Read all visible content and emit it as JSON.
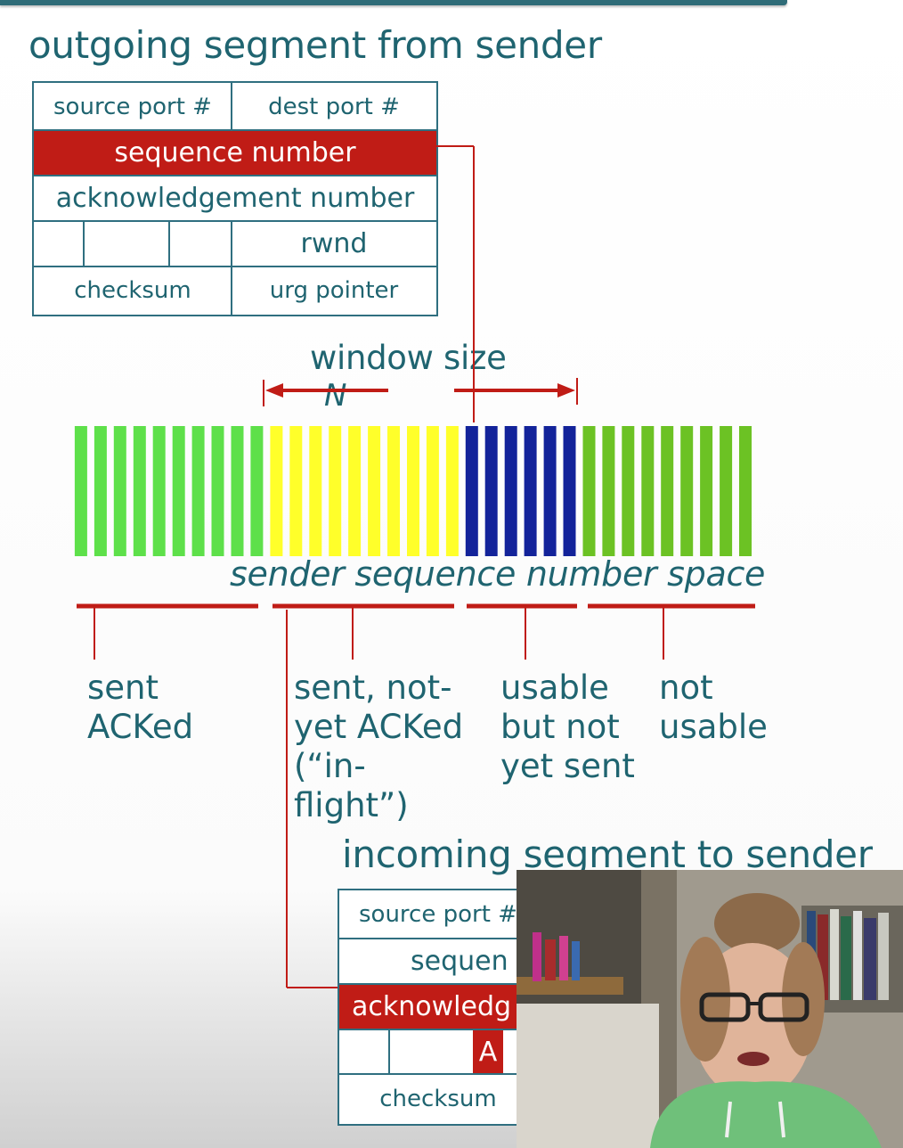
{
  "titles": {
    "outgoing": "outgoing segment from sender",
    "incoming": "incoming segment to sender"
  },
  "outgoing_segment": {
    "source_port": "source port #",
    "dest_port": "dest port #",
    "sequence_number": "sequence number",
    "ack_number": "acknowledgement number",
    "rwnd": "rwnd",
    "checksum": "checksum",
    "urg_pointer": "urg pointer"
  },
  "incoming_segment": {
    "source_port": "source port #",
    "sequence_number": "sequen",
    "ack_number": "acknowledg",
    "ack_flag": "A",
    "checksum": "checksum"
  },
  "window": {
    "label": "window size",
    "n_label": "N"
  },
  "space_label": "sender sequence number space",
  "bar_groups": [
    {
      "name": "sent-acked",
      "count": 10,
      "color": "#5ee04a"
    },
    {
      "name": "sent-not-acked",
      "count": 10,
      "color": "#ffff2a"
    },
    {
      "name": "usable-not-sent",
      "count": 6,
      "color": "#13239a"
    },
    {
      "name": "not-usable",
      "count": 9,
      "color": "#6cc224"
    }
  ],
  "categories": [
    "sent\nACKed",
    "sent, not-\nyet ACKed\n(“in-\nflight”)",
    "usable\nbut not\nyet sent",
    "not\nusable"
  ],
  "colors": {
    "teal": "#1f6470",
    "red": "#c01c16",
    "green": "#5ee04a",
    "yellow": "#ffff2a",
    "blue": "#13239a",
    "olive_green": "#6cc224"
  },
  "overlay": {
    "type": "webcam presenter video"
  }
}
